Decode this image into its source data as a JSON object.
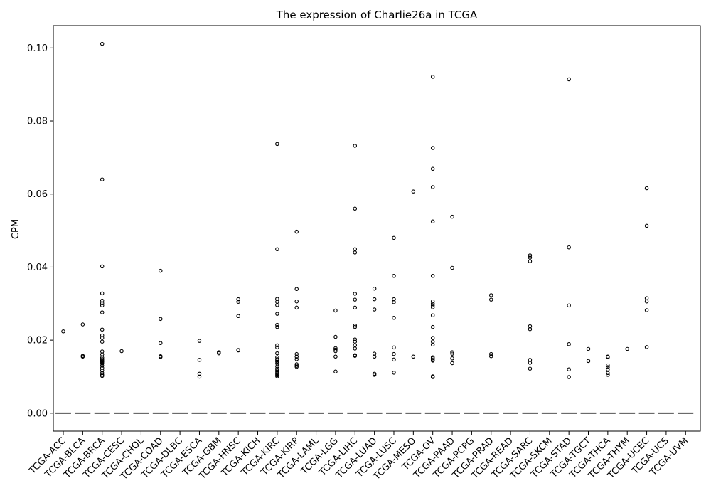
{
  "chart_data": {
    "type": "box",
    "title": "The expression of Charlie26a in TCGA",
    "xlabel": "",
    "ylabel": "CPM",
    "ylim": [
      -0.0049,
      0.1061
    ],
    "yticks": [
      0.0,
      0.02,
      0.04,
      0.06,
      0.08,
      0.1
    ],
    "ytick_labels": [
      "0.00",
      "0.02",
      "0.04",
      "0.06",
      "0.08",
      "0.10"
    ],
    "median_color": "#555555",
    "categories": [
      "TCGA-ACC",
      "TCGA-BLCA",
      "TCGA-BRCA",
      "TCGA-CESC",
      "TCGA-CHOL",
      "TCGA-COAD",
      "TCGA-DLBC",
      "TCGA-ESCA",
      "TCGA-GBM",
      "TCGA-HNSC",
      "TCGA-KICH",
      "TCGA-KIRC",
      "TCGA-KIRP",
      "TCGA-LAML",
      "TCGA-LGG",
      "TCGA-LIHC",
      "TCGA-LUAD",
      "TCGA-LUSC",
      "TCGA-MESO",
      "TCGA-OV",
      "TCGA-PAAD",
      "TCGA-PCPG",
      "TCGA-PRAD",
      "TCGA-READ",
      "TCGA-SARC",
      "TCGA-SKCM",
      "TCGA-STAD",
      "TCGA-TGCT",
      "TCGA-THCA",
      "TCGA-THYM",
      "TCGA-UCEC",
      "TCGA-UCS",
      "TCGA-UVM"
    ],
    "median": [
      0,
      0,
      0,
      0,
      0,
      0,
      0,
      0,
      0,
      0,
      0,
      0,
      0,
      0,
      0,
      0,
      0,
      0,
      0,
      0,
      0,
      0,
      0,
      0,
      0,
      0,
      0,
      0,
      0,
      0,
      0,
      0,
      0
    ],
    "outliers": [
      [
        0.0224
      ],
      [
        0.0243,
        0.0157,
        0.0155
      ],
      [
        0.1011,
        0.064,
        0.0402,
        0.0328,
        0.0308,
        0.0301,
        0.0295,
        0.0276,
        0.0229,
        0.0213,
        0.0206,
        0.0196,
        0.0169,
        0.0161,
        0.0152,
        0.0148,
        0.0145,
        0.0142,
        0.014,
        0.0136,
        0.013,
        0.0124,
        0.0117,
        0.011,
        0.0105,
        0.0102
      ],
      [
        0.017
      ],
      [],
      [
        0.039,
        0.0258,
        0.0192,
        0.0156,
        0.0154
      ],
      [],
      [
        0.0198,
        0.0146,
        0.0108,
        0.01
      ],
      [
        0.0167,
        0.0164
      ],
      [
        0.0312,
        0.0305,
        0.0266,
        0.0173,
        0.0172
      ],
      [],
      [
        0.0737,
        0.0449,
        0.0313,
        0.0305,
        0.0296,
        0.0272,
        0.0242,
        0.0236,
        0.0186,
        0.018,
        0.0164,
        0.0153,
        0.0148,
        0.0145,
        0.0141,
        0.0136,
        0.0128,
        0.0122,
        0.0118,
        0.0114,
        0.011,
        0.0107,
        0.0104,
        0.0101
      ],
      [
        0.0497,
        0.034,
        0.0306,
        0.0289,
        0.0162,
        0.0155,
        0.0148,
        0.0134,
        0.013,
        0.0127
      ],
      [],
      [
        0.0281,
        0.0209,
        0.0178,
        0.0174,
        0.017,
        0.0155,
        0.0114
      ],
      [
        0.0732,
        0.056,
        0.0449,
        0.044,
        0.0327,
        0.0311,
        0.0289,
        0.024,
        0.0236,
        0.0202,
        0.0196,
        0.0186,
        0.0177,
        0.0159,
        0.0157
      ],
      [
        0.0341,
        0.0312,
        0.0284,
        0.0163,
        0.0155,
        0.0108,
        0.0105
      ],
      [
        0.048,
        0.0376,
        0.0312,
        0.0304,
        0.0261,
        0.018,
        0.0162,
        0.0147,
        0.0111
      ],
      [
        0.0607,
        0.0155
      ],
      [
        0.0921,
        0.0726,
        0.0669,
        0.0619,
        0.0525,
        0.0376,
        0.0306,
        0.03,
        0.0295,
        0.029,
        0.0268,
        0.0236,
        0.0206,
        0.0196,
        0.0188,
        0.0153,
        0.015,
        0.0146,
        0.0144,
        0.0101,
        0.0099
      ],
      [
        0.0538,
        0.0398,
        0.0167,
        0.0163,
        0.015,
        0.0137
      ],
      [],
      [
        0.0323,
        0.0311,
        0.0162,
        0.0156
      ],
      [],
      [
        0.0432,
        0.0426,
        0.0416,
        0.0238,
        0.023,
        0.0146,
        0.0138,
        0.0122
      ],
      [],
      [
        0.0914,
        0.0454,
        0.0295,
        0.0189,
        0.012,
        0.0099
      ],
      [
        0.0176,
        0.0143
      ],
      [
        0.0155,
        0.0153,
        0.0131,
        0.0126,
        0.012,
        0.011,
        0.0105
      ],
      [
        0.0176
      ],
      [
        0.0616,
        0.0513,
        0.0315,
        0.0306,
        0.0282,
        0.0181
      ],
      [],
      []
    ]
  }
}
